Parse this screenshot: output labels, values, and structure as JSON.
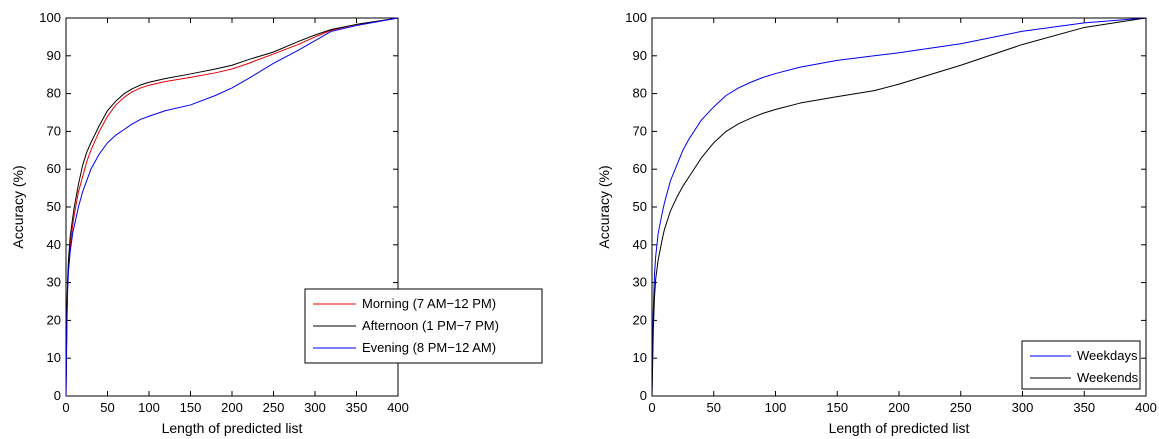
{
  "chart_data": [
    {
      "type": "line",
      "xlabel": "Length of predicted list",
      "ylabel": "Accuracy (%)",
      "xlim": [
        0,
        400
      ],
      "ylim": [
        0,
        100
      ],
      "xticks": [
        "0",
        "50",
        "100",
        "150",
        "200",
        "250",
        "300",
        "350",
        "400"
      ],
      "yticks": [
        "0",
        "10",
        "20",
        "30",
        "40",
        "50",
        "60",
        "70",
        "80",
        "90",
        "100"
      ],
      "grid": false,
      "legend_position": "bottom-right",
      "series": [
        {
          "name": "Morning (7 AM−12 PM)",
          "color": "#e60000",
          "x": [
            0,
            1,
            2,
            3,
            5,
            8,
            10,
            15,
            20,
            25,
            30,
            40,
            50,
            60,
            70,
            80,
            90,
            100,
            120,
            150,
            180,
            200,
            220,
            250,
            280,
            300,
            320,
            350,
            380,
            400
          ],
          "y": [
            0,
            20,
            30,
            35,
            40,
            45,
            48,
            54,
            58,
            62,
            65,
            70,
            74,
            77,
            79,
            80.5,
            81.5,
            82.2,
            83.2,
            84.3,
            85.5,
            86.5,
            88,
            90.5,
            93,
            95,
            96.8,
            98.3,
            99.3,
            100
          ]
        },
        {
          "name": "Afternoon (1 PM−7 PM)",
          "color": "#000000",
          "x": [
            0,
            1,
            2,
            3,
            5,
            8,
            10,
            15,
            20,
            25,
            30,
            40,
            50,
            60,
            70,
            80,
            90,
            100,
            120,
            150,
            180,
            200,
            220,
            250,
            280,
            300,
            320,
            350,
            380,
            400
          ],
          "y": [
            0,
            21,
            31,
            36,
            42,
            47,
            50,
            56,
            61,
            64.5,
            67,
            71.5,
            75.5,
            78,
            80,
            81.3,
            82.3,
            83,
            84,
            85.2,
            86.5,
            87.5,
            89,
            91,
            93.8,
            95.5,
            97,
            98.3,
            99.3,
            100
          ]
        },
        {
          "name": "Evening (8 PM−12 AM)",
          "color": "#0000ee",
          "x": [
            0,
            1,
            2,
            3,
            5,
            8,
            10,
            15,
            20,
            25,
            30,
            40,
            50,
            60,
            70,
            80,
            90,
            100,
            120,
            150,
            180,
            200,
            220,
            250,
            280,
            300,
            320,
            350,
            380,
            400
          ],
          "y": [
            0,
            18,
            28,
            33,
            38,
            43,
            45,
            50,
            54,
            57,
            60,
            64,
            67,
            69,
            70.5,
            72,
            73.2,
            74,
            75.5,
            77,
            79.5,
            81.5,
            84,
            88,
            91.5,
            94,
            96.5,
            98,
            99.2,
            100
          ]
        }
      ]
    },
    {
      "type": "line",
      "xlabel": "Length of predicted list",
      "ylabel": "Accuracy (%)",
      "xlim": [
        0,
        400
      ],
      "ylim": [
        0,
        100
      ],
      "xticks": [
        "0",
        "50",
        "100",
        "150",
        "200",
        "250",
        "300",
        "350",
        "400"
      ],
      "yticks": [
        "0",
        "10",
        "20",
        "30",
        "40",
        "50",
        "60",
        "70",
        "80",
        "90",
        "100"
      ],
      "grid": false,
      "legend_position": "bottom-right",
      "series": [
        {
          "name": "Weekdays",
          "color": "#0000ee",
          "x": [
            0,
            1,
            2,
            3,
            5,
            8,
            10,
            15,
            20,
            25,
            30,
            40,
            50,
            60,
            70,
            80,
            90,
            100,
            120,
            150,
            180,
            200,
            250,
            300,
            350,
            400
          ],
          "y": [
            0,
            22,
            32,
            37,
            43,
            48,
            51,
            57,
            61,
            65,
            68,
            73,
            76.5,
            79.5,
            81.5,
            83,
            84.3,
            85.3,
            87,
            88.8,
            90,
            90.8,
            93.2,
            96.5,
            98.7,
            100
          ]
        },
        {
          "name": "Weekends",
          "color": "#000000",
          "x": [
            0,
            1,
            2,
            3,
            5,
            8,
            10,
            15,
            20,
            25,
            30,
            40,
            50,
            60,
            70,
            80,
            90,
            100,
            120,
            150,
            180,
            200,
            250,
            300,
            350,
            400
          ],
          "y": [
            0,
            17,
            26,
            31,
            36,
            41,
            44,
            49,
            52.5,
            55.5,
            58,
            63,
            67,
            70,
            72,
            73.5,
            74.8,
            75.8,
            77.5,
            79.2,
            80.8,
            82.5,
            87.5,
            93,
            97.5,
            100
          ]
        }
      ]
    }
  ]
}
